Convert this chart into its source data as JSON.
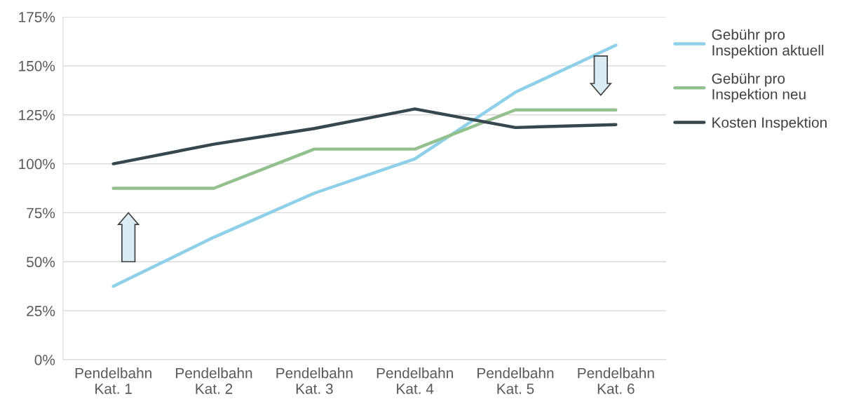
{
  "chart_data": {
    "type": "line",
    "categories": [
      "Pendelbahn\nKat. 1",
      "Pendelbahn\nKat. 2",
      "Pendelbahn\nKat. 3",
      "Pendelbahn\nKat. 4",
      "Pendelbahn\nKat. 5",
      "Pendelbahn\nKat. 6"
    ],
    "series": [
      {
        "name": "Gebühr pro\nInspektion aktuell",
        "color": "#8ecfea",
        "values": [
          37.5,
          62.5,
          85,
          102.5,
          136.5,
          160.5
        ]
      },
      {
        "name": "Gebühr pro\nInspektion neu",
        "color": "#92c18e",
        "values": [
          87.5,
          87.5,
          107.5,
          107.5,
          127.5,
          127.5
        ]
      },
      {
        "name": "Kosten Inspektion",
        "color": "#37474f",
        "values": [
          100,
          110,
          118,
          128,
          118.5,
          120
        ]
      }
    ],
    "ylim": [
      0,
      175
    ],
    "yticks": [
      {
        "value": 0,
        "label": "0%"
      },
      {
        "value": 25,
        "label": "25%"
      },
      {
        "value": 50,
        "label": "50%"
      },
      {
        "value": 75,
        "label": "75%"
      },
      {
        "value": 100,
        "label": "100%"
      },
      {
        "value": 125,
        "label": "125%"
      },
      {
        "value": 150,
        "label": "150%"
      },
      {
        "value": 175,
        "label": "175%"
      }
    ],
    "grid": "y",
    "legend": "right",
    "marker": "none",
    "line_style": "solid"
  }
}
